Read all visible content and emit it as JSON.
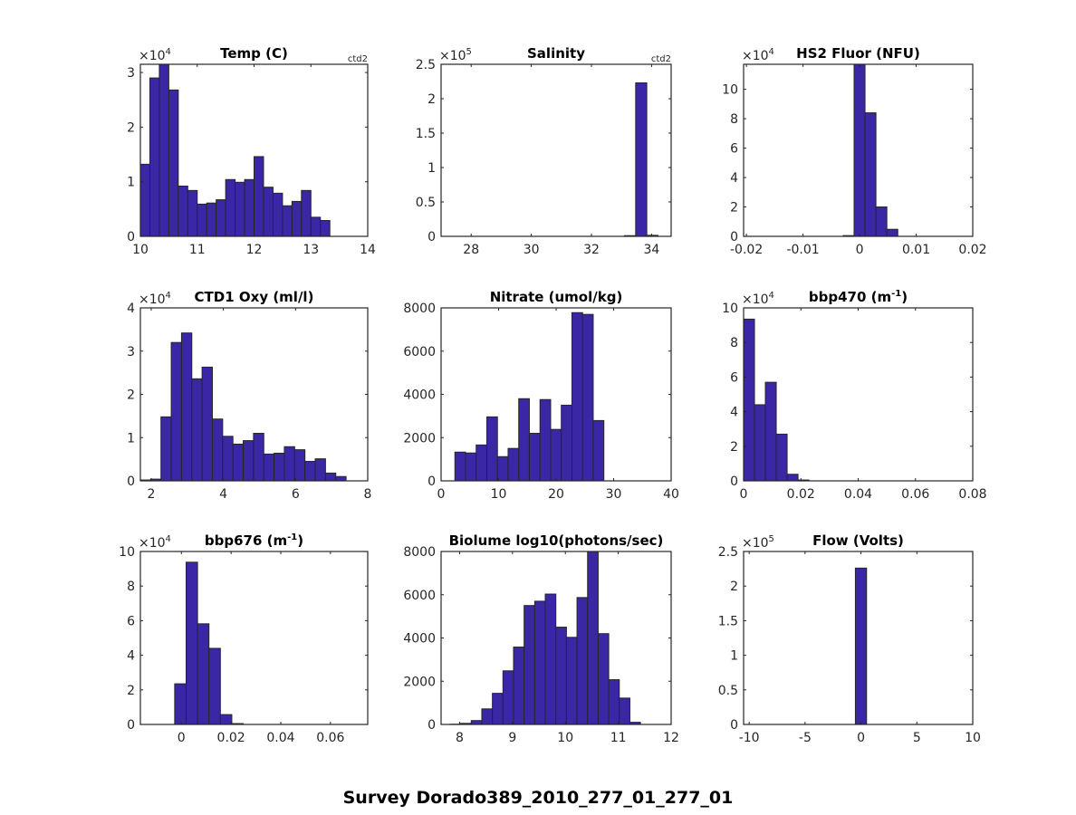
{
  "figure_title": "Survey Dorado389_2010_277_01_277_01",
  "bar_color": "#3a27a6",
  "edge_color": "#262626",
  "chart_data": [
    {
      "type": "bar",
      "title": "Temp (C)",
      "title_sup": "",
      "title_suffix": "",
      "note": "ctd2",
      "multiplier": "×10",
      "exponent": "4",
      "xlim": [
        10,
        14
      ],
      "ylim": [
        0,
        3.15
      ],
      "xticks": [
        10,
        11,
        12,
        13,
        14
      ],
      "xtick_labels": [
        "10",
        "11",
        "12",
        "13",
        "14"
      ],
      "yticks": [
        0,
        1,
        2,
        3
      ],
      "ytick_labels": [
        "0",
        "1",
        "2",
        "3"
      ],
      "bin_start": 10.0,
      "bin_width": 0.1667,
      "values": [
        1.32,
        2.9,
        3.15,
        2.68,
        0.92,
        0.84,
        0.59,
        0.61,
        0.67,
        1.04,
        0.99,
        1.04,
        1.46,
        0.9,
        0.79,
        0.56,
        0.64,
        0.84,
        0.35,
        0.29
      ]
    },
    {
      "type": "bar",
      "title": "Salinity",
      "title_sup": "",
      "title_suffix": "",
      "note": "ctd2",
      "multiplier": "×10",
      "exponent": "5",
      "xlim": [
        27.0,
        34.65
      ],
      "ylim": [
        0,
        2.5
      ],
      "xticks": [
        28,
        30,
        32,
        34
      ],
      "xtick_labels": [
        "28",
        "30",
        "32",
        "34"
      ],
      "yticks": [
        0,
        0.5,
        1,
        1.5,
        2,
        2.5
      ],
      "ytick_labels": [
        "0",
        "0.5",
        "1",
        "1.5",
        "2",
        "2.5"
      ],
      "bin_start": 33.1,
      "bin_width": 0.37,
      "values": [
        0.01,
        2.23,
        0.015
      ]
    },
    {
      "type": "bar",
      "title": "HS2 Fluor (NFU)",
      "title_sup": "",
      "title_suffix": "",
      "note": "",
      "multiplier": "×10",
      "exponent": "4",
      "xlim": [
        -0.0205,
        0.02
      ],
      "ylim": [
        0,
        11.7
      ],
      "xticks": [
        -0.02,
        -0.01,
        0,
        0.01,
        0.02
      ],
      "xtick_labels": [
        "-0.02",
        "-0.01",
        "0",
        "0.01",
        "0.02"
      ],
      "yticks": [
        0,
        2,
        4,
        6,
        8,
        10
      ],
      "ytick_labels": [
        "0",
        "2",
        "4",
        "6",
        "8",
        "10"
      ],
      "bin_start": -0.0029,
      "bin_width": 0.00193,
      "values": [
        0.05,
        11.7,
        8.4,
        2.0,
        0.48
      ]
    },
    {
      "type": "bar",
      "title": "CTD1 Oxy (ml/l)",
      "title_sup": "",
      "title_suffix": "",
      "note": "",
      "multiplier": "×10",
      "exponent": "4",
      "xlim": [
        1.7,
        8
      ],
      "ylim": [
        0,
        4
      ],
      "xticks": [
        2,
        4,
        6,
        8
      ],
      "xtick_labels": [
        "2",
        "4",
        "6",
        "8"
      ],
      "yticks": [
        0,
        1,
        2,
        3,
        4
      ],
      "ytick_labels": [
        "0",
        "1",
        "2",
        "3",
        "4"
      ],
      "bin_start": 1.7,
      "bin_width": 0.285,
      "values": [
        0.02,
        0.04,
        1.48,
        3.2,
        3.42,
        2.36,
        2.63,
        1.43,
        1.03,
        0.85,
        0.93,
        1.1,
        0.62,
        0.64,
        0.79,
        0.72,
        0.45,
        0.51,
        0.18,
        0.1
      ]
    },
    {
      "type": "bar",
      "title": "Nitrate (umol/kg)",
      "title_sup": "",
      "title_suffix": "",
      "note": "",
      "multiplier": "",
      "exponent": "",
      "xlim": [
        0,
        40
      ],
      "ylim": [
        0,
        8000
      ],
      "xticks": [
        0,
        10,
        20,
        30,
        40
      ],
      "xtick_labels": [
        "0",
        "10",
        "20",
        "30",
        "40"
      ],
      "yticks": [
        0,
        2000,
        4000,
        6000,
        8000
      ],
      "ytick_labels": [
        "0",
        "2000",
        "4000",
        "6000",
        "8000"
      ],
      "bin_start": 2.4,
      "bin_width": 1.85,
      "values": [
        1330,
        1290,
        1660,
        2960,
        1120,
        1500,
        3800,
        2200,
        3760,
        2380,
        3500,
        7780,
        7700,
        2790
      ]
    },
    {
      "type": "bar",
      "title": "bbp470 (m",
      "title_sup": "-1",
      "title_suffix": ")",
      "note": "",
      "multiplier": "×10",
      "exponent": "4",
      "xlim": [
        0,
        0.08
      ],
      "ylim": [
        0,
        10
      ],
      "xticks": [
        0,
        0.02,
        0.04,
        0.06,
        0.08
      ],
      "xtick_labels": [
        "0",
        "0.02",
        "0.04",
        "0.06",
        "0.08"
      ],
      "yticks": [
        0,
        2,
        4,
        6,
        8,
        10
      ],
      "ytick_labels": [
        "0",
        "2",
        "4",
        "6",
        "8",
        "10"
      ],
      "bin_start": 0.0,
      "bin_width": 0.0038,
      "values": [
        9.35,
        4.4,
        5.7,
        2.7,
        0.38,
        0.05
      ]
    },
    {
      "type": "bar",
      "title": "bbp676 (m",
      "title_sup": "-1",
      "title_suffix": ")",
      "note": "",
      "multiplier": "×10",
      "exponent": "4",
      "xlim": [
        -0.0165,
        0.075
      ],
      "ylim": [
        0,
        10
      ],
      "xticks": [
        0,
        0.02,
        0.04,
        0.06
      ],
      "xtick_labels": [
        "0",
        "0.02",
        "0.04",
        "0.06"
      ],
      "yticks": [
        0,
        2,
        4,
        6,
        8,
        10
      ],
      "ytick_labels": [
        "0",
        "2",
        "4",
        "6",
        "8",
        "10"
      ],
      "bin_start": -0.0027,
      "bin_width": 0.0046,
      "values": [
        2.35,
        9.38,
        5.82,
        4.4,
        0.57,
        0.05
      ]
    },
    {
      "type": "bar",
      "title": "Biolume log10(photons/sec)",
      "title_sup": "",
      "title_suffix": "",
      "note": "",
      "multiplier": "",
      "exponent": "",
      "xlim": [
        7.65,
        12
      ],
      "ylim": [
        0,
        8000
      ],
      "xticks": [
        8,
        9,
        10,
        11,
        12
      ],
      "xtick_labels": [
        "8",
        "9",
        "10",
        "11",
        "12"
      ],
      "yticks": [
        0,
        2000,
        4000,
        6000,
        8000
      ],
      "ytick_labels": [
        "0",
        "2000",
        "4000",
        "6000",
        "8000"
      ],
      "bin_start": 7.82,
      "bin_width": 0.2,
      "values": [
        10,
        50,
        180,
        720,
        1440,
        2480,
        3580,
        5500,
        5700,
        6030,
        4500,
        4030,
        5870,
        8000,
        4200,
        2070,
        1220,
        100
      ]
    },
    {
      "type": "bar",
      "title": "Flow (Volts)",
      "title_sup": "",
      "title_suffix": "",
      "note": "",
      "multiplier": "×10",
      "exponent": "5",
      "xlim": [
        -10.5,
        10
      ],
      "ylim": [
        0,
        2.5
      ],
      "xticks": [
        -10,
        -5,
        0,
        5,
        10
      ],
      "xtick_labels": [
        "-10",
        "-5",
        "0",
        "5",
        "10"
      ],
      "yticks": [
        0,
        0.5,
        1,
        1.5,
        2,
        2.5
      ],
      "ytick_labels": [
        "0",
        "0.5",
        "1",
        "1.5",
        "2",
        "2.5"
      ],
      "bin_start": -0.5,
      "bin_width": 1.0,
      "values": [
        2.26
      ]
    }
  ]
}
